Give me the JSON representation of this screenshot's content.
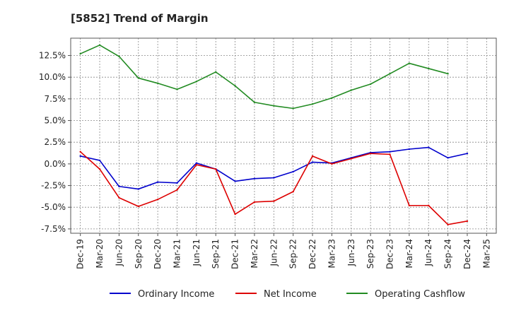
{
  "chart_data": {
    "type": "line",
    "title": "[5852]  Trend of Margin",
    "xlabel": "",
    "ylabel": "",
    "categories": [
      "Dec-19",
      "Mar-20",
      "Jun-20",
      "Sep-20",
      "Dec-20",
      "Mar-21",
      "Jun-21",
      "Sep-21",
      "Dec-21",
      "Mar-22",
      "Jun-22",
      "Sep-22",
      "Dec-22",
      "Mar-23",
      "Jun-23",
      "Sep-23",
      "Dec-23",
      "Mar-24",
      "Jun-24",
      "Sep-24",
      "Dec-24",
      "Mar-25"
    ],
    "ylim": [
      -8.0,
      14.5
    ],
    "yticks": [
      12.5,
      10.0,
      7.5,
      5.0,
      2.5,
      0.0,
      -2.5,
      -5.0,
      -7.5
    ],
    "ytick_labels": [
      "12.5%",
      "10.0%",
      "7.5%",
      "5.0%",
      "2.5%",
      "0.0%",
      "-2.5%",
      "-5.0%",
      "-7.5%"
    ],
    "grid": true,
    "legend_position": "bottom",
    "series": [
      {
        "name": "Ordinary Income",
        "color": "#0000cc",
        "values": [
          0.9,
          0.4,
          -2.6,
          -2.9,
          -2.1,
          -2.2,
          0.1,
          -0.6,
          -2.0,
          -1.7,
          -1.6,
          -0.9,
          0.2,
          0.1,
          0.7,
          1.3,
          1.4,
          1.7,
          1.9,
          0.7,
          1.2,
          null
        ]
      },
      {
        "name": "Net Income",
        "color": "#dd0000",
        "values": [
          1.4,
          -0.6,
          -3.9,
          -4.9,
          -4.1,
          -3.0,
          -0.1,
          -0.6,
          -5.8,
          -4.4,
          -4.3,
          -3.2,
          0.9,
          0.0,
          0.6,
          1.2,
          1.1,
          -4.8,
          -4.8,
          -7.0,
          -6.6,
          null
        ]
      },
      {
        "name": "Operating Cashflow",
        "color": "#228b22",
        "values": [
          12.7,
          13.7,
          12.4,
          9.9,
          9.3,
          8.6,
          9.5,
          10.6,
          9.0,
          7.1,
          6.7,
          6.4,
          6.9,
          7.6,
          8.5,
          9.2,
          10.4,
          11.6,
          11.0,
          10.4,
          null,
          null
        ]
      }
    ]
  }
}
